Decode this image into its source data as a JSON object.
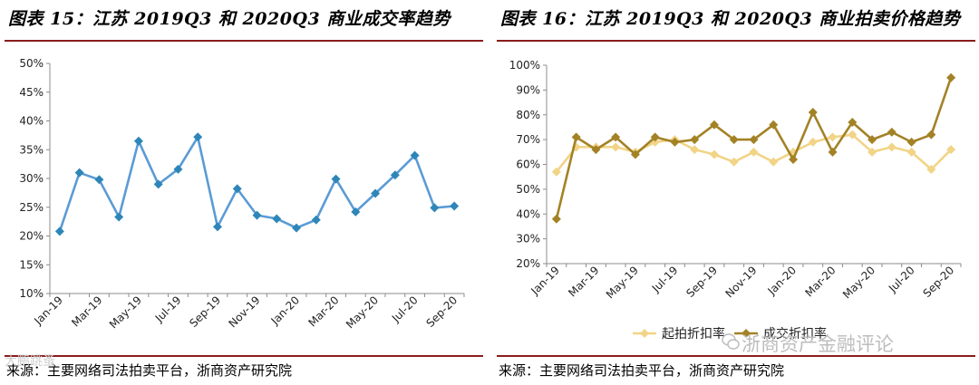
{
  "left": {
    "title": "图表 15：江苏 2019Q3 和 2020Q3 商业成交率趋势",
    "source": "来源：主要网络司法拍卖平台，浙商资产研究院"
  },
  "right": {
    "title": "图表 16：江苏 2019Q3 和 2020Q3 商业拍卖价格趋势",
    "source": "来源：主要网络司法拍卖平台，浙商资产研究院"
  },
  "watermarks": {
    "bottom_left": "大鹏跳蚤",
    "bottom_right": "浙商资产金融评论"
  },
  "chart_data": [
    {
      "type": "line",
      "title": "图表 15：江苏 2019Q3 和 2020Q3 商业成交率趋势",
      "x": [
        "Jan-19",
        "Feb-19",
        "Mar-19",
        "Apr-19",
        "May-19",
        "Jun-19",
        "Jul-19",
        "Aug-19",
        "Sep-19",
        "Oct-19",
        "Nov-19",
        "Dec-19",
        "Jan-20",
        "Feb-20",
        "Mar-20",
        "Apr-20",
        "May-20",
        "Jun-20",
        "Jul-20",
        "Aug-20",
        "Sep-20"
      ],
      "xticklabels": [
        "Jan-19",
        "Mar-19",
        "May-19",
        "Jul-19",
        "Sep-19",
        "Nov-19",
        "Jan-20",
        "Mar-20",
        "May-20",
        "Jul-20",
        "Sep-20"
      ],
      "series": [
        {
          "values": [
            20.8,
            31.0,
            29.8,
            23.3,
            36.5,
            29.0,
            31.6,
            37.2,
            21.6,
            28.2,
            23.6,
            23.0,
            21.4,
            22.8,
            29.9,
            24.2,
            27.4,
            30.6,
            34.0,
            24.9,
            25.2
          ]
        }
      ],
      "yticklabels": [
        "10%",
        "15%",
        "20%",
        "25%",
        "30%",
        "35%",
        "40%",
        "45%",
        "50%"
      ],
      "ylim": [
        10,
        50
      ],
      "ytick_step": 5,
      "grid": false,
      "colors": {
        "line": "#5b9bd5",
        "marker": "#2e86b8"
      }
    },
    {
      "type": "line",
      "title": "图表 16：江苏 2019Q3 和 2020Q3 商业拍卖价格趋势",
      "x": [
        "Jan-19",
        "Feb-19",
        "Mar-19",
        "Apr-19",
        "May-19",
        "Jun-19",
        "Jul-19",
        "Aug-19",
        "Sep-19",
        "Oct-19",
        "Nov-19",
        "Dec-19",
        "Jan-20",
        "Feb-20",
        "Mar-20",
        "Apr-20",
        "May-20",
        "Jun-20",
        "Jul-20",
        "Aug-20",
        "Sep-20"
      ],
      "xticklabels": [
        "Jan-19",
        "Mar-19",
        "May-19",
        "Jul-19",
        "Sep-19",
        "Nov-19",
        "Jan-20",
        "Mar-20",
        "May-20",
        "Jul-20",
        "Sep-20"
      ],
      "series": [
        {
          "name": "起拍折扣率",
          "values": [
            57,
            67,
            67,
            67,
            65,
            69,
            70,
            66,
            64,
            61,
            65,
            61,
            65,
            69,
            71,
            72,
            65,
            67,
            65,
            58,
            66
          ]
        },
        {
          "name": "成交折扣率",
          "values": [
            38,
            71,
            66,
            71,
            64,
            71,
            69,
            70,
            76,
            70,
            70,
            76,
            62,
            81,
            65,
            77,
            70,
            73,
            69,
            72,
            95
          ]
        }
      ],
      "yticklabels": [
        "20%",
        "30%",
        "40%",
        "50%",
        "60%",
        "70%",
        "80%",
        "90%",
        "100%"
      ],
      "ylim": [
        20,
        100
      ],
      "ytick_step": 10,
      "grid": false,
      "legend": "bottom",
      "colors": {
        "series_1": "#f2d487",
        "series_2": "#a38226"
      }
    }
  ]
}
